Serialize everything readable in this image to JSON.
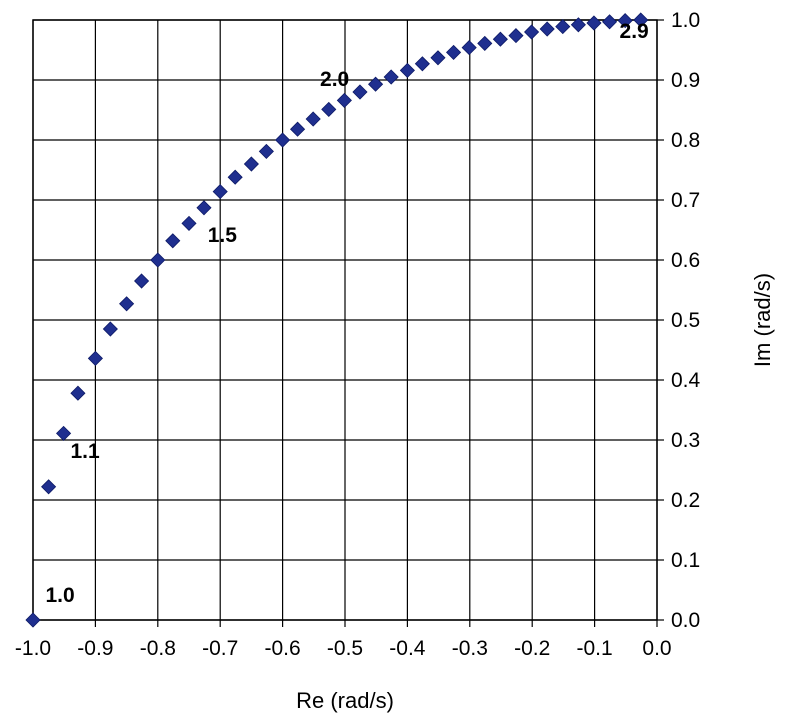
{
  "chart_data": {
    "type": "scatter",
    "title": "",
    "xlabel": "Re (rad/s)",
    "ylabel": "Im (rad/s)",
    "xlim": [
      -1.0,
      0.0
    ],
    "ylim": [
      0.0,
      1.0
    ],
    "grid": true,
    "y_axis_side": "right",
    "marker": "diamond",
    "marker_color": "#1f2f8f",
    "x_ticks": [
      "-1.0",
      "-0.9",
      "-0.8",
      "-0.7",
      "-0.6",
      "-0.5",
      "-0.4",
      "-0.3",
      "-0.2",
      "-0.1",
      "0.0"
    ],
    "y_ticks": [
      "0.0",
      "0.1",
      "0.2",
      "0.3",
      "0.4",
      "0.5",
      "0.6",
      "0.7",
      "0.8",
      "0.9",
      "1.0"
    ],
    "series": [
      {
        "points": [
          [
            -1.0,
            0.0
          ],
          [
            -0.975,
            0.222
          ],
          [
            -0.951,
            0.311
          ],
          [
            -0.928,
            0.378
          ],
          [
            -0.9,
            0.436
          ],
          [
            -0.876,
            0.485
          ],
          [
            -0.85,
            0.527
          ],
          [
            -0.826,
            0.565
          ],
          [
            -0.8,
            0.6
          ],
          [
            -0.776,
            0.632
          ],
          [
            -0.75,
            0.661
          ],
          [
            -0.726,
            0.687
          ],
          [
            -0.7,
            0.714
          ],
          [
            -0.676,
            0.738
          ],
          [
            -0.65,
            0.76
          ],
          [
            -0.626,
            0.781
          ],
          [
            -0.6,
            0.8
          ],
          [
            -0.576,
            0.818
          ],
          [
            -0.551,
            0.835
          ],
          [
            -0.526,
            0.851
          ],
          [
            -0.501,
            0.866
          ],
          [
            -0.476,
            0.88
          ],
          [
            -0.451,
            0.893
          ],
          [
            -0.426,
            0.905
          ],
          [
            -0.4,
            0.916
          ],
          [
            -0.376,
            0.927
          ],
          [
            -0.351,
            0.937
          ],
          [
            -0.326,
            0.946
          ],
          [
            -0.301,
            0.954
          ],
          [
            -0.276,
            0.961
          ],
          [
            -0.251,
            0.968
          ],
          [
            -0.226,
            0.974
          ],
          [
            -0.201,
            0.98
          ],
          [
            -0.176,
            0.985
          ],
          [
            -0.151,
            0.989
          ],
          [
            -0.126,
            0.992
          ],
          [
            -0.101,
            0.995
          ],
          [
            -0.076,
            0.997
          ],
          [
            -0.051,
            0.999
          ],
          [
            -0.026,
            1.0
          ]
        ]
      }
    ],
    "annotations": [
      {
        "text": "1.0",
        "x": -0.98,
        "y": 0.03
      },
      {
        "text": "1.1",
        "x": -0.94,
        "y": 0.27
      },
      {
        "text": "1.5",
        "x": -0.72,
        "y": 0.63
      },
      {
        "text": "2.0",
        "x": -0.54,
        "y": 0.89
      },
      {
        "text": "2.9",
        "x": -0.06,
        "y": 0.97
      }
    ]
  }
}
